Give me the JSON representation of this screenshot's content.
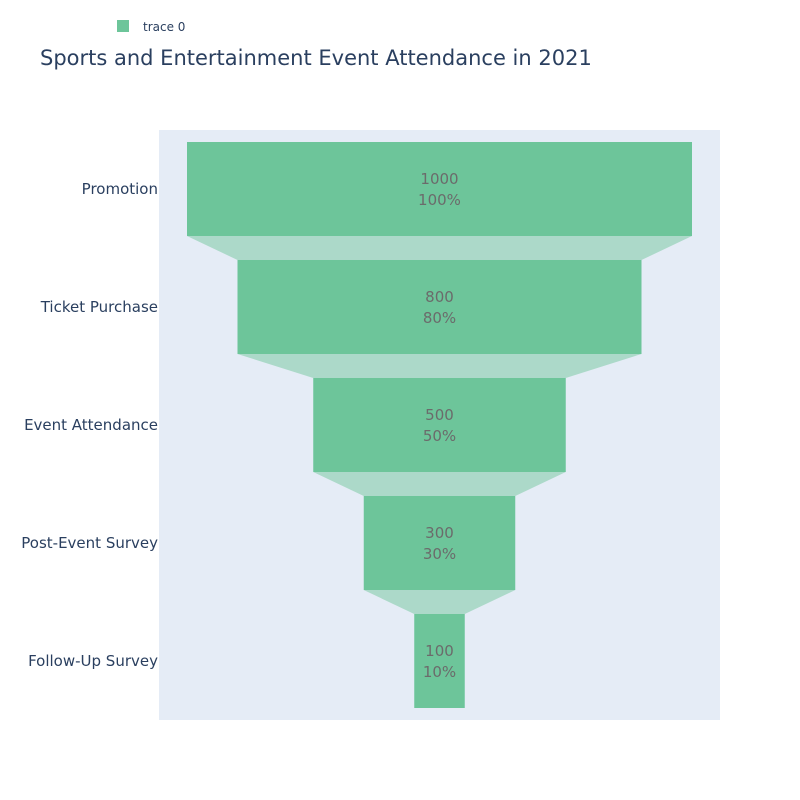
{
  "chart_data": {
    "type": "funnel",
    "title": "Sports and Entertainment Event Attendance in 2021",
    "legend": {
      "entries": [
        "trace 0"
      ],
      "placement": "top-left"
    },
    "series": [
      {
        "name": "trace 0",
        "color": "#6dc59a",
        "connector_color": "#acd9c9"
      }
    ],
    "categories": [
      "Promotion",
      "Ticket Purchase",
      "Event Attendance",
      "Post-Event Survey",
      "Follow-Up Survey"
    ],
    "values": [
      1000,
      800,
      500,
      300,
      100
    ],
    "percent_labels": [
      "100%",
      "80%",
      "50%",
      "30%",
      "10%"
    ],
    "plot_background": "#e5ecf6",
    "xlabel": "",
    "ylabel": ""
  }
}
